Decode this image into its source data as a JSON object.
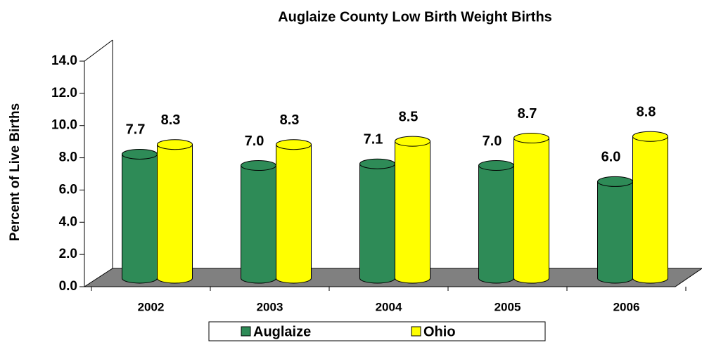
{
  "chart_data": {
    "type": "bar3d",
    "title": "Auglaize County Low Birth Weight Births",
    "y_label": "Percent of Live Births",
    "categories": [
      "2002",
      "2003",
      "2004",
      "2005",
      "2006"
    ],
    "series": [
      {
        "name": "Auglaize",
        "color": "#2e8b57",
        "values": [
          7.7,
          7.0,
          7.1,
          7.0,
          6.0
        ],
        "value_labels": [
          "7.7",
          "7.0",
          "7.1",
          "7.0",
          "6.0"
        ]
      },
      {
        "name": "Ohio",
        "color": "#ffff00",
        "values": [
          8.3,
          8.3,
          8.5,
          8.7,
          8.8
        ],
        "value_labels": [
          "8.3",
          "8.3",
          "8.5",
          "8.7",
          "8.8"
        ]
      }
    ],
    "ylim": [
      0,
      14
    ],
    "yticks": [
      {
        "value": 0,
        "label": "0.0"
      },
      {
        "value": 2,
        "label": "2.0"
      },
      {
        "value": 4,
        "label": "4.0"
      },
      {
        "value": 6,
        "label": "6.0"
      },
      {
        "value": 8,
        "label": "8.0"
      },
      {
        "value": 10,
        "label": "10.0"
      },
      {
        "value": 12,
        "label": "12.0"
      },
      {
        "value": 14,
        "label": "14.0"
      }
    ]
  }
}
